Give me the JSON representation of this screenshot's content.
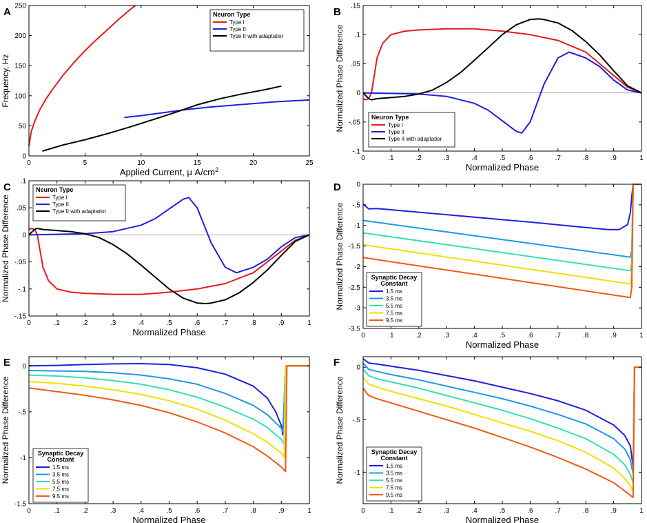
{
  "figure": {
    "width": 939,
    "height": 758
  },
  "chart_data": [
    {
      "panel": "A",
      "type": "line",
      "xlabel": "Applied Current,  μ A/cm",
      "xlabel_sup": "2",
      "ylabel": "Frequency, Hz",
      "xlim": [
        0,
        25
      ],
      "ylim": [
        0,
        250
      ],
      "xticks": [
        0,
        5,
        10,
        15,
        20,
        25
      ],
      "yticks": [
        0,
        50,
        100,
        150,
        200,
        250
      ],
      "zero_line": false,
      "legend_title": "Neuron Type",
      "legend_position": "top-right",
      "series": [
        {
          "name": "Type I",
          "color": "#e41a1c",
          "x": [
            0,
            0.2,
            0.5,
            1,
            1.5,
            2,
            3,
            4,
            5,
            6,
            7,
            8,
            9,
            9.5
          ],
          "y": [
            17,
            40,
            57,
            78,
            94,
            108,
            133,
            155,
            175,
            193,
            210,
            227,
            243,
            250
          ]
        },
        {
          "name": "Type II",
          "color": "#1f1fdc",
          "x": [
            8.5,
            10,
            12,
            14,
            16,
            18,
            20,
            22,
            25
          ],
          "y": [
            64,
            67,
            72,
            77,
            81,
            84,
            87,
            90,
            93
          ]
        },
        {
          "name": "Type II with adaptatior",
          "color": "#000000",
          "x": [
            1.2,
            3,
            5,
            7,
            9,
            11,
            13,
            15,
            17,
            19,
            21,
            22.5
          ],
          "y": [
            8,
            18,
            27,
            37,
            48,
            60,
            72,
            85,
            95,
            103,
            110,
            116
          ]
        }
      ]
    },
    {
      "panel": "B",
      "type": "line",
      "xlabel": "Normalized Phase",
      "ylabel": "Normalized Phase Difference",
      "xlim": [
        0,
        1
      ],
      "ylim": [
        -0.1,
        0.15
      ],
      "xticks": [
        0,
        0.1,
        0.2,
        0.3,
        0.4,
        0.5,
        0.6,
        0.7,
        0.8,
        0.9,
        1
      ],
      "yticks": [
        -0.1,
        -0.05,
        0,
        0.05,
        0.1,
        0.15
      ],
      "zero_line": true,
      "legend_title": "Neuron Type",
      "legend_position": "bottom-left",
      "series": [
        {
          "name": "Type I",
          "color": "#e41a1c",
          "x": [
            0,
            0.01,
            0.02,
            0.03,
            0.04,
            0.05,
            0.07,
            0.1,
            0.15,
            0.2,
            0.3,
            0.4,
            0.5,
            0.6,
            0.7,
            0.8,
            0.9,
            0.95,
            1
          ],
          "y": [
            -0.01,
            -0.012,
            -0.01,
            0,
            0.03,
            0.06,
            0.085,
            0.1,
            0.106,
            0.108,
            0.11,
            0.11,
            0.106,
            0.1,
            0.09,
            0.07,
            0.03,
            0.01,
            0
          ]
        },
        {
          "name": "Type II",
          "color": "#1f1fdc",
          "x": [
            0,
            0.1,
            0.2,
            0.3,
            0.4,
            0.45,
            0.5,
            0.55,
            0.57,
            0.6,
            0.65,
            0.7,
            0.74,
            0.8,
            0.85,
            0.9,
            0.95,
            1
          ],
          "y": [
            0,
            -0.001,
            -0.002,
            -0.006,
            -0.018,
            -0.03,
            -0.048,
            -0.066,
            -0.069,
            -0.05,
            0.015,
            0.06,
            0.07,
            0.06,
            0.045,
            0.022,
            0.005,
            0
          ]
        },
        {
          "name": "Type II with adaptatior",
          "color": "#000000",
          "x": [
            0,
            0.02,
            0.03,
            0.05,
            0.1,
            0.15,
            0.2,
            0.25,
            0.3,
            0.35,
            0.4,
            0.45,
            0.5,
            0.55,
            0.6,
            0.63,
            0.65,
            0.7,
            0.75,
            0.8,
            0.85,
            0.9,
            0.95,
            1
          ],
          "y": [
            0,
            -0.01,
            -0.012,
            -0.01,
            -0.008,
            -0.006,
            -0.002,
            0.005,
            0.018,
            0.035,
            0.056,
            0.078,
            0.1,
            0.117,
            0.126,
            0.127,
            0.126,
            0.12,
            0.107,
            0.088,
            0.065,
            0.038,
            0.012,
            0
          ]
        }
      ]
    },
    {
      "panel": "C",
      "type": "line",
      "xlabel": "Normalized Phase",
      "ylabel": "Normalized Phase Difference",
      "xlim": [
        0,
        1
      ],
      "ylim": [
        -0.15,
        0.1
      ],
      "xticks": [
        0,
        0.1,
        0.2,
        0.3,
        0.4,
        0.5,
        0.6,
        0.7,
        0.8,
        0.9,
        1
      ],
      "yticks": [
        -0.15,
        -0.1,
        -0.05,
        0,
        0.05,
        0.1
      ],
      "zero_line": true,
      "legend_title": "Neuron Type",
      "legend_position": "top-left",
      "series": [
        {
          "name": "Type I",
          "color": "#e41a1c",
          "x": [
            0,
            0.01,
            0.02,
            0.03,
            0.04,
            0.05,
            0.07,
            0.1,
            0.15,
            0.2,
            0.3,
            0.4,
            0.5,
            0.6,
            0.7,
            0.8,
            0.9,
            0.95,
            1
          ],
          "y": [
            0.01,
            0.012,
            0.01,
            0,
            -0.03,
            -0.06,
            -0.085,
            -0.1,
            -0.106,
            -0.108,
            -0.11,
            -0.11,
            -0.106,
            -0.1,
            -0.09,
            -0.07,
            -0.03,
            -0.01,
            0
          ]
        },
        {
          "name": "Type II",
          "color": "#1f1fdc",
          "x": [
            0,
            0.1,
            0.2,
            0.3,
            0.4,
            0.45,
            0.5,
            0.55,
            0.57,
            0.6,
            0.65,
            0.7,
            0.74,
            0.8,
            0.85,
            0.9,
            0.95,
            1
          ],
          "y": [
            0,
            0.001,
            0.002,
            0.006,
            0.018,
            0.03,
            0.048,
            0.066,
            0.069,
            0.05,
            -0.015,
            -0.06,
            -0.07,
            -0.06,
            -0.045,
            -0.022,
            -0.005,
            0
          ]
        },
        {
          "name": "Type II with adaptatior",
          "color": "#000000",
          "x": [
            0,
            0.02,
            0.03,
            0.05,
            0.1,
            0.15,
            0.2,
            0.25,
            0.3,
            0.35,
            0.4,
            0.45,
            0.5,
            0.55,
            0.6,
            0.63,
            0.65,
            0.7,
            0.75,
            0.8,
            0.85,
            0.9,
            0.95,
            1
          ],
          "y": [
            0,
            0.01,
            0.012,
            0.01,
            0.008,
            0.006,
            0.002,
            -0.005,
            -0.018,
            -0.035,
            -0.056,
            -0.078,
            -0.1,
            -0.117,
            -0.126,
            -0.127,
            -0.126,
            -0.12,
            -0.107,
            -0.088,
            -0.065,
            -0.038,
            -0.012,
            0
          ]
        }
      ]
    },
    {
      "panel": "D",
      "type": "line",
      "xlabel": "Normalized Phase",
      "ylabel": "Normalized Phase Difference",
      "xlim": [
        0,
        1
      ],
      "ylim": [
        -3.5,
        0
      ],
      "xticks": [
        0,
        0.1,
        0.2,
        0.3,
        0.4,
        0.5,
        0.6,
        0.7,
        0.8,
        0.9,
        1
      ],
      "yticks": [
        -3.5,
        -3,
        -2.5,
        -2,
        -1.5,
        -1,
        -0.5,
        0
      ],
      "zero_line": false,
      "legend_title": "Synaptic Decay\nConstant",
      "legend_position": "bottom-left",
      "series": [
        {
          "name": "1.5 ms",
          "color": "#1f1fdc",
          "x": [
            0,
            0.02,
            0.05,
            0.1,
            0.2,
            0.4,
            0.6,
            0.8,
            0.88,
            0.92,
            0.95,
            0.96,
            0.965,
            0.97,
            0.975,
            1
          ],
          "y": [
            -0.48,
            -0.6,
            -0.59,
            -0.62,
            -0.68,
            -0.8,
            -0.92,
            -1.05,
            -1.1,
            -1.1,
            -0.98,
            -0.7,
            -0.3,
            0,
            0,
            0
          ]
        },
        {
          "name": "3.5 ms",
          "color": "#1e9ae6",
          "x": [
            0,
            0.96,
            0.965,
            0.97,
            0.975,
            1
          ],
          "y": [
            -0.88,
            -1.77,
            -1.6,
            0,
            0,
            0
          ]
        },
        {
          "name": "5.5 ms",
          "color": "#35e0b0",
          "x": [
            0,
            0.96,
            0.965,
            0.97,
            0.975,
            1
          ],
          "y": [
            -1.18,
            -2.1,
            -1.9,
            0,
            0,
            0
          ]
        },
        {
          "name": "7.5 ms",
          "color": "#f0e000",
          "x": [
            0,
            0.96,
            0.965,
            0.97,
            0.975,
            1
          ],
          "y": [
            -1.47,
            -2.42,
            -2.2,
            0,
            0,
            0
          ]
        },
        {
          "name": "9.5 ms",
          "color": "#f05a10",
          "x": [
            0,
            0.96,
            0.965,
            0.97,
            0.975,
            1
          ],
          "y": [
            -1.78,
            -2.75,
            -2.5,
            0,
            0,
            0
          ]
        }
      ]
    },
    {
      "panel": "E",
      "type": "line",
      "xlabel": "Normalized Phase",
      "ylabel": "Normalized Phase Difference",
      "xlim": [
        0,
        1
      ],
      "ylim": [
        -1.5,
        0.1
      ],
      "xticks": [
        0,
        0.1,
        0.2,
        0.3,
        0.4,
        0.5,
        0.6,
        0.7,
        0.8,
        0.9,
        1
      ],
      "yticks": [
        -1.5,
        -1,
        -0.5,
        0
      ],
      "zero_line": false,
      "legend_title": "Synaptic Decay\nConstant",
      "legend_position": "bottom-left",
      "series": [
        {
          "name": "1.5 ms",
          "color": "#1f1fdc",
          "x": [
            0,
            0.1,
            0.2,
            0.3,
            0.4,
            0.5,
            0.6,
            0.7,
            0.8,
            0.85,
            0.88,
            0.9,
            0.905,
            0.91,
            0.915,
            0.93,
            1
          ],
          "y": [
            0,
            0.005,
            0.015,
            0.022,
            0.025,
            0.015,
            -0.02,
            -0.09,
            -0.22,
            -0.35,
            -0.5,
            -0.65,
            -0.75,
            -0.4,
            0,
            0,
            0
          ]
        },
        {
          "name": "3.5 ms",
          "color": "#1e9ae6",
          "x": [
            0,
            0.1,
            0.2,
            0.3,
            0.4,
            0.5,
            0.6,
            0.7,
            0.8,
            0.85,
            0.9,
            0.905,
            0.91,
            0.915,
            0.93,
            1
          ],
          "y": [
            -0.05,
            -0.055,
            -0.06,
            -0.075,
            -0.1,
            -0.14,
            -0.2,
            -0.3,
            -0.43,
            -0.53,
            -0.68,
            -0.72,
            -0.4,
            0,
            0,
            0
          ]
        },
        {
          "name": "5.5 ms",
          "color": "#35e0b0",
          "x": [
            0,
            0.1,
            0.2,
            0.3,
            0.4,
            0.5,
            0.6,
            0.7,
            0.8,
            0.85,
            0.9,
            0.91,
            0.915,
            0.93,
            1
          ],
          "y": [
            -0.1,
            -0.11,
            -0.13,
            -0.16,
            -0.2,
            -0.26,
            -0.34,
            -0.45,
            -0.58,
            -0.67,
            -0.8,
            -0.85,
            0,
            0,
            0
          ]
        },
        {
          "name": "7.5 ms",
          "color": "#f0e000",
          "x": [
            0,
            0.1,
            0.2,
            0.3,
            0.4,
            0.5,
            0.6,
            0.7,
            0.8,
            0.85,
            0.9,
            0.91,
            0.915,
            0.93,
            1
          ],
          "y": [
            -0.17,
            -0.19,
            -0.22,
            -0.26,
            -0.31,
            -0.38,
            -0.47,
            -0.59,
            -0.74,
            -0.83,
            -0.95,
            -1.0,
            0,
            0,
            0
          ]
        },
        {
          "name": "9.5 ms",
          "color": "#f05a10",
          "x": [
            0,
            0.1,
            0.2,
            0.3,
            0.4,
            0.5,
            0.6,
            0.7,
            0.8,
            0.85,
            0.9,
            0.915,
            0.92,
            0.93,
            1
          ],
          "y": [
            -0.24,
            -0.28,
            -0.32,
            -0.37,
            -0.43,
            -0.51,
            -0.61,
            -0.73,
            -0.88,
            -0.98,
            -1.1,
            -1.15,
            0,
            0,
            0
          ]
        }
      ]
    },
    {
      "panel": "F",
      "type": "line",
      "xlabel": "Normalized Phase",
      "ylabel": "Normalized Phase Difference",
      "xlim": [
        0,
        1
      ],
      "ylim": [
        -1.3,
        0.1
      ],
      "xticks": [
        0,
        0.1,
        0.2,
        0.3,
        0.4,
        0.5,
        0.6,
        0.7,
        0.8,
        0.9,
        1
      ],
      "yticks": [
        -1,
        -0.5,
        0
      ],
      "zero_line": false,
      "legend_title": "Synaptic Decay\nConstant",
      "legend_position": "bottom-left",
      "series": [
        {
          "name": "1.5 ms",
          "color": "#1f1fdc",
          "x": [
            0,
            0.02,
            0.05,
            0.1,
            0.2,
            0.3,
            0.4,
            0.5,
            0.6,
            0.7,
            0.8,
            0.9,
            0.94,
            0.96,
            0.97,
            0.975,
            0.98,
            1
          ],
          "y": [
            0.08,
            0.04,
            0.03,
            0.01,
            -0.03,
            -0.08,
            -0.13,
            -0.19,
            -0.25,
            -0.32,
            -0.41,
            -0.55,
            -0.65,
            -0.75,
            -0.95,
            0,
            0,
            0
          ]
        },
        {
          "name": "3.5 ms",
          "color": "#1e9ae6",
          "x": [
            0,
            0.02,
            0.05,
            0.1,
            0.2,
            0.3,
            0.4,
            0.5,
            0.6,
            0.7,
            0.8,
            0.9,
            0.94,
            0.96,
            0.97,
            0.975,
            0.98,
            1
          ],
          "y": [
            0.04,
            -0.02,
            -0.04,
            -0.07,
            -0.12,
            -0.18,
            -0.24,
            -0.3,
            -0.37,
            -0.45,
            -0.54,
            -0.68,
            -0.78,
            -0.88,
            -1.02,
            0,
            0,
            0
          ]
        },
        {
          "name": "5.5 ms",
          "color": "#35e0b0",
          "x": [
            0,
            0.02,
            0.05,
            0.1,
            0.2,
            0.3,
            0.4,
            0.5,
            0.6,
            0.7,
            0.8,
            0.9,
            0.94,
            0.96,
            0.97,
            0.975,
            0.98,
            1
          ],
          "y": [
            -0.02,
            -0.08,
            -0.11,
            -0.14,
            -0.2,
            -0.27,
            -0.34,
            -0.41,
            -0.49,
            -0.58,
            -0.68,
            -0.83,
            -0.93,
            -1.02,
            -1.1,
            0,
            0,
            0
          ]
        },
        {
          "name": "7.5 ms",
          "color": "#f0e000",
          "x": [
            0,
            0.02,
            0.05,
            0.1,
            0.2,
            0.3,
            0.4,
            0.5,
            0.6,
            0.7,
            0.8,
            0.9,
            0.94,
            0.96,
            0.97,
            0.975,
            0.98,
            1
          ],
          "y": [
            -0.1,
            -0.16,
            -0.19,
            -0.23,
            -0.3,
            -0.37,
            -0.45,
            -0.53,
            -0.61,
            -0.7,
            -0.81,
            -0.96,
            -1.06,
            -1.13,
            -1.18,
            0,
            0,
            0
          ]
        },
        {
          "name": "9.5 ms",
          "color": "#f05a10",
          "x": [
            0,
            0.02,
            0.05,
            0.1,
            0.2,
            0.3,
            0.4,
            0.5,
            0.6,
            0.7,
            0.8,
            0.9,
            0.94,
            0.96,
            0.97,
            0.975,
            0.98,
            1
          ],
          "y": [
            -0.2,
            -0.27,
            -0.3,
            -0.34,
            -0.42,
            -0.5,
            -0.58,
            -0.67,
            -0.76,
            -0.86,
            -0.97,
            -1.1,
            -1.18,
            -1.22,
            -1.24,
            0,
            0,
            0
          ]
        }
      ]
    }
  ]
}
